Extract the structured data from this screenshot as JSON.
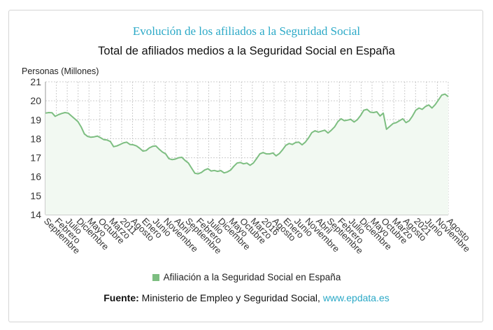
{
  "header": {
    "title": "Evolución de los afiliados a la Seguridad Social",
    "subtitle": "Total de afiliados medios a la Seguridad Social en España"
  },
  "legend": {
    "label": "Afiliación a la Seguridad Social en España"
  },
  "source": {
    "label": "Fuente:",
    "text": " Ministerio de Empleo y Seguridad Social, ",
    "link": "www.epdata.es"
  },
  "colors": {
    "line": "#7dbe81",
    "fill": "#f2f9f2",
    "grid": "#cccccc",
    "title": "#2ba9c7"
  },
  "chart_data": {
    "type": "area",
    "ylabel": "Personas (Millones)",
    "ylim": [
      14,
      21
    ],
    "yticks": [
      14,
      15,
      16,
      17,
      18,
      19,
      20,
      21
    ],
    "grid": true,
    "legend_position": "bottom",
    "xtick_labels": [
      "Septiembre",
      "Febrero",
      "Julio",
      "Diciembre",
      "Mayo",
      "Octubre",
      "Marzo",
      "2011",
      "Agosto",
      "Enero",
      "Junio",
      "Noviembre",
      "Abril",
      "Septiembre",
      "Febrero",
      "Julio",
      "Diciembre",
      "Mayo",
      "Octubre",
      "Marzo",
      "2016",
      "Agosto",
      "Enero",
      "Junio",
      "Noviembre",
      "Abril",
      "Septiembre",
      "Febrero",
      "Julio",
      "Diciembre",
      "Mayo",
      "Octubre",
      "Marzo",
      "Agosto",
      "2021",
      "Junio",
      "Noviembre",
      "Agosto"
    ],
    "series": [
      {
        "name": "Afiliación a la Seguridad Social en España",
        "values": [
          19.35,
          19.38,
          19.37,
          19.18,
          19.27,
          19.33,
          19.38,
          19.35,
          19.2,
          19.05,
          18.9,
          18.62,
          18.25,
          18.12,
          18.08,
          18.1,
          18.14,
          18.05,
          17.95,
          17.93,
          17.85,
          17.58,
          17.62,
          17.7,
          17.78,
          17.82,
          17.7,
          17.68,
          17.62,
          17.5,
          17.35,
          17.38,
          17.52,
          17.6,
          17.62,
          17.45,
          17.3,
          17.2,
          16.95,
          16.9,
          16.93,
          17.0,
          17.02,
          16.85,
          16.72,
          16.45,
          16.18,
          16.15,
          16.22,
          16.35,
          16.42,
          16.3,
          16.33,
          16.28,
          16.32,
          16.2,
          16.25,
          16.35,
          16.55,
          16.72,
          16.75,
          16.68,
          16.72,
          16.6,
          16.72,
          16.95,
          17.2,
          17.27,
          17.2,
          17.2,
          17.25,
          17.1,
          17.22,
          17.42,
          17.65,
          17.75,
          17.7,
          17.8,
          17.82,
          17.68,
          17.82,
          18.05,
          18.32,
          18.42,
          18.35,
          18.4,
          18.45,
          18.3,
          18.45,
          18.62,
          18.9,
          19.05,
          18.95,
          18.98,
          19.02,
          18.88,
          19.0,
          19.22,
          19.5,
          19.55,
          19.4,
          19.38,
          19.42,
          19.2,
          19.35,
          18.5,
          18.65,
          18.8,
          18.85,
          18.95,
          19.05,
          18.85,
          18.95,
          19.2,
          19.5,
          19.62,
          19.55,
          19.7,
          19.78,
          19.62,
          19.8,
          20.05,
          20.3,
          20.35,
          20.22
        ]
      }
    ]
  }
}
